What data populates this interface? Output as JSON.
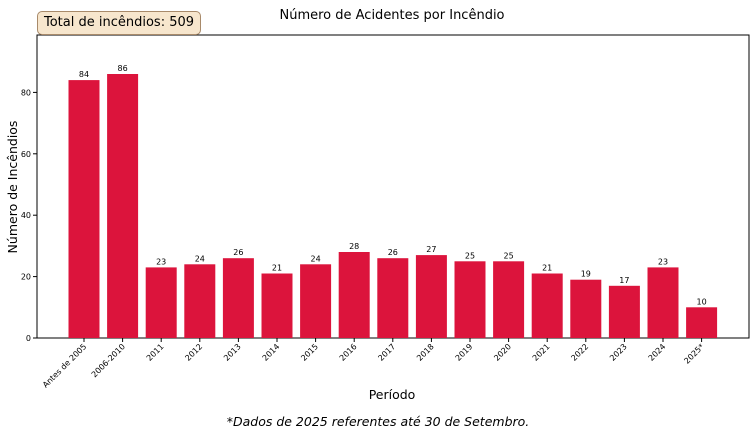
{
  "total_box": {
    "label": "Total de incêndios: 509"
  },
  "footnote": "*Dados de 2025 referentes até 30 de Setembro.",
  "chart_data": {
    "type": "bar",
    "title": "Número de Acidentes por Incêndio",
    "xlabel": "Período",
    "ylabel": "Número de Incêndios",
    "categories": [
      "Antes de 2005",
      "2006-2010",
      "2011",
      "2012",
      "2013",
      "2014",
      "2015",
      "2016",
      "2017",
      "2018",
      "2019",
      "2020",
      "2021",
      "2022",
      "2023",
      "2024",
      "2025*"
    ],
    "values": [
      84,
      86,
      23,
      24,
      26,
      21,
      24,
      28,
      26,
      27,
      25,
      25,
      21,
      19,
      17,
      23,
      10
    ],
    "yticks": [
      0,
      20,
      40,
      60,
      80
    ],
    "ylim": [
      0,
      99
    ],
    "bar_color": "#dc143c",
    "grid": false
  }
}
